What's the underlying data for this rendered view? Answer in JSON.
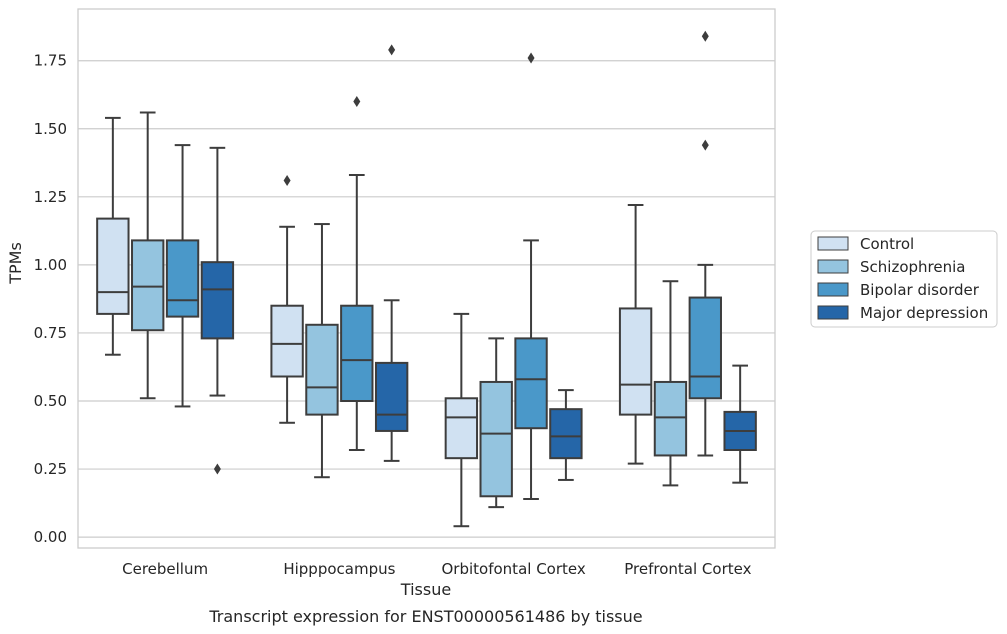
{
  "caption": "Transcript expression for ENST00000561486 by tissue",
  "chart_data": {
    "type": "box",
    "xlabel": "Tissue",
    "ylabel": "TPMs",
    "ylim": [
      -0.04,
      1.94
    ],
    "yticks": [
      0.0,
      0.25,
      0.5,
      0.75,
      1.0,
      1.25,
      1.5,
      1.75
    ],
    "ytick_labels": [
      "0.00",
      "0.25",
      "0.50",
      "0.75",
      "1.00",
      "1.25",
      "1.50",
      "1.75"
    ],
    "grid": "horizontal",
    "legend_position": "right",
    "categories": [
      "Cerebellum",
      "Hipppocampus",
      "Orbitofontal Cortex",
      "Prefrontal Cortex"
    ],
    "series": [
      {
        "name": "Control",
        "color": "#d0e1f2",
        "boxes": [
          {
            "whisker_low": 0.67,
            "q1": 0.82,
            "median": 0.9,
            "q3": 1.17,
            "whisker_high": 1.54,
            "outliers": []
          },
          {
            "whisker_low": 0.42,
            "q1": 0.59,
            "median": 0.71,
            "q3": 0.85,
            "whisker_high": 1.14,
            "outliers": [
              1.31
            ]
          },
          {
            "whisker_low": 0.04,
            "q1": 0.29,
            "median": 0.44,
            "q3": 0.51,
            "whisker_high": 0.82,
            "outliers": []
          },
          {
            "whisker_low": 0.27,
            "q1": 0.45,
            "median": 0.56,
            "q3": 0.84,
            "whisker_high": 1.22,
            "outliers": []
          }
        ]
      },
      {
        "name": "Schizophrenia",
        "color": "#94c4df",
        "boxes": [
          {
            "whisker_low": 0.51,
            "q1": 0.76,
            "median": 0.92,
            "q3": 1.09,
            "whisker_high": 1.56,
            "outliers": []
          },
          {
            "whisker_low": 0.22,
            "q1": 0.45,
            "median": 0.55,
            "q3": 0.78,
            "whisker_high": 1.15,
            "outliers": []
          },
          {
            "whisker_low": 0.11,
            "q1": 0.15,
            "median": 0.38,
            "q3": 0.57,
            "whisker_high": 0.73,
            "outliers": []
          },
          {
            "whisker_low": 0.19,
            "q1": 0.3,
            "median": 0.44,
            "q3": 0.57,
            "whisker_high": 0.94,
            "outliers": []
          }
        ]
      },
      {
        "name": "Bipolar disorder",
        "color": "#4a98c9",
        "boxes": [
          {
            "whisker_low": 0.48,
            "q1": 0.81,
            "median": 0.87,
            "q3": 1.09,
            "whisker_high": 1.44,
            "outliers": []
          },
          {
            "whisker_low": 0.32,
            "q1": 0.5,
            "median": 0.65,
            "q3": 0.85,
            "whisker_high": 1.33,
            "outliers": [
              1.6
            ]
          },
          {
            "whisker_low": 0.14,
            "q1": 0.4,
            "median": 0.58,
            "q3": 0.73,
            "whisker_high": 1.09,
            "outliers": [
              1.76
            ]
          },
          {
            "whisker_low": 0.3,
            "q1": 0.51,
            "median": 0.59,
            "q3": 0.88,
            "whisker_high": 1.0,
            "outliers": [
              1.44,
              1.84
            ]
          }
        ]
      },
      {
        "name": "Major depression",
        "color": "#2566a8",
        "boxes": [
          {
            "whisker_low": 0.52,
            "q1": 0.73,
            "median": 0.91,
            "q3": 1.01,
            "whisker_high": 1.43,
            "outliers": [
              0.25
            ]
          },
          {
            "whisker_low": 0.28,
            "q1": 0.39,
            "median": 0.45,
            "q3": 0.64,
            "whisker_high": 0.87,
            "outliers": [
              1.79
            ]
          },
          {
            "whisker_low": 0.21,
            "q1": 0.29,
            "median": 0.37,
            "q3": 0.47,
            "whisker_high": 0.54,
            "outliers": []
          },
          {
            "whisker_low": 0.2,
            "q1": 0.32,
            "median": 0.39,
            "q3": 0.46,
            "whisker_high": 0.63,
            "outliers": []
          }
        ]
      }
    ]
  }
}
